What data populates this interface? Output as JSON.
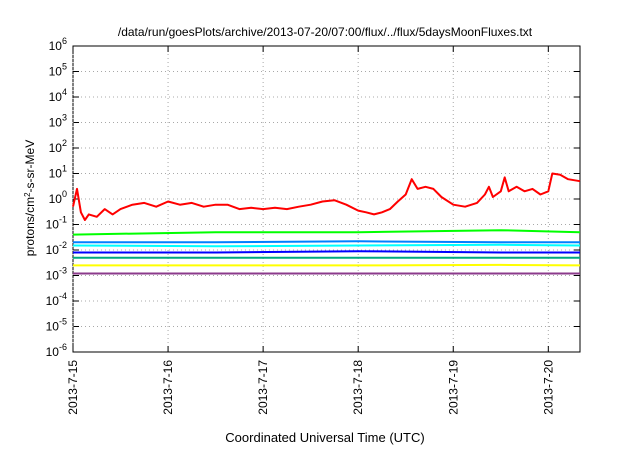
{
  "chart_data": {
    "type": "line",
    "title": "/data/run/goesPlots/archive/2013-07-20/07:00/flux/../flux/5daysMoonFluxes.txt",
    "xlabel": "Coordinated Universal Time (UTC)",
    "ylabel": {
      "prefix": "protons/cm",
      "sup": "2",
      "suffix": "-s-sr-MeV"
    },
    "yscale": "log",
    "ylim": [
      1e-06,
      1000000.0
    ],
    "y_ticks": [
      {
        "base": "10",
        "exp": "6"
      },
      {
        "base": "10",
        "exp": "5"
      },
      {
        "base": "10",
        "exp": "4"
      },
      {
        "base": "10",
        "exp": "3"
      },
      {
        "base": "10",
        "exp": "2"
      },
      {
        "base": "10",
        "exp": "1"
      },
      {
        "base": "10",
        "exp": "0"
      },
      {
        "base": "10",
        "exp": "-1"
      },
      {
        "base": "10",
        "exp": "-2"
      },
      {
        "base": "10",
        "exp": "-3"
      },
      {
        "base": "10",
        "exp": "-4"
      },
      {
        "base": "10",
        "exp": "-5"
      },
      {
        "base": "10",
        "exp": "-6"
      }
    ],
    "xlim": [
      "2013-07-15",
      "2013-07-20 08:00"
    ],
    "x_ticks": [
      "2013-7-15",
      "2013-7-16",
      "2013-7-17",
      "2013-7-18",
      "2013-7-19",
      "2013-7-20"
    ],
    "grid": true,
    "series": [
      {
        "color": "#ff0000",
        "values": [
          [
            "2013-07-15 00:00",
            0.5
          ],
          [
            "2013-07-15 01:00",
            2.5
          ],
          [
            "2013-07-15 02:00",
            0.3
          ],
          [
            "2013-07-15 03:00",
            0.15
          ],
          [
            "2013-07-15 04:00",
            0.25
          ],
          [
            "2013-07-15 06:00",
            0.2
          ],
          [
            "2013-07-15 08:00",
            0.4
          ],
          [
            "2013-07-15 10:00",
            0.25
          ],
          [
            "2013-07-15 12:00",
            0.4
          ],
          [
            "2013-07-15 15:00",
            0.6
          ],
          [
            "2013-07-15 18:00",
            0.7
          ],
          [
            "2013-07-15 21:00",
            0.5
          ],
          [
            "2013-07-16 00:00",
            0.8
          ],
          [
            "2013-07-16 03:00",
            0.6
          ],
          [
            "2013-07-16 06:00",
            0.7
          ],
          [
            "2013-07-16 09:00",
            0.5
          ],
          [
            "2013-07-16 12:00",
            0.6
          ],
          [
            "2013-07-16 15:00",
            0.6
          ],
          [
            "2013-07-16 18:00",
            0.4
          ],
          [
            "2013-07-16 21:00",
            0.45
          ],
          [
            "2013-07-17 00:00",
            0.4
          ],
          [
            "2013-07-17 03:00",
            0.45
          ],
          [
            "2013-07-17 06:00",
            0.4
          ],
          [
            "2013-07-17 09:00",
            0.5
          ],
          [
            "2013-07-17 12:00",
            0.6
          ],
          [
            "2013-07-17 15:00",
            0.8
          ],
          [
            "2013-07-17 18:00",
            0.9
          ],
          [
            "2013-07-17 21:00",
            0.6
          ],
          [
            "2013-07-18 00:00",
            0.35
          ],
          [
            "2013-07-18 02:00",
            0.3
          ],
          [
            "2013-07-18 04:00",
            0.25
          ],
          [
            "2013-07-18 06:00",
            0.3
          ],
          [
            "2013-07-18 08:00",
            0.4
          ],
          [
            "2013-07-18 10:00",
            0.8
          ],
          [
            "2013-07-18 12:00",
            1.5
          ],
          [
            "2013-07-18 13:30",
            6
          ],
          [
            "2013-07-18 15:00",
            2.5
          ],
          [
            "2013-07-18 17:00",
            3
          ],
          [
            "2013-07-18 19:00",
            2.5
          ],
          [
            "2013-07-18 21:00",
            1.2
          ],
          [
            "2013-07-19 00:00",
            0.6
          ],
          [
            "2013-07-19 03:00",
            0.5
          ],
          [
            "2013-07-19 06:00",
            0.7
          ],
          [
            "2013-07-19 08:00",
            1.5
          ],
          [
            "2013-07-19 09:00",
            3
          ],
          [
            "2013-07-19 10:00",
            1.2
          ],
          [
            "2013-07-19 12:00",
            2
          ],
          [
            "2013-07-19 13:00",
            7
          ],
          [
            "2013-07-19 14:00",
            2
          ],
          [
            "2013-07-19 16:00",
            3
          ],
          [
            "2013-07-19 18:00",
            2
          ],
          [
            "2013-07-19 20:00",
            2.5
          ],
          [
            "2013-07-19 22:00",
            1.5
          ],
          [
            "2013-07-20 00:00",
            2
          ],
          [
            "2013-07-20 01:00",
            10
          ],
          [
            "2013-07-20 03:00",
            9
          ],
          [
            "2013-07-20 05:00",
            6
          ],
          [
            "2013-07-20 08:00",
            5
          ]
        ]
      },
      {
        "color": "#00ff00",
        "values": [
          [
            "2013-07-15 00:00",
            0.04
          ],
          [
            "2013-07-16 12:00",
            0.05
          ],
          [
            "2013-07-18 00:00",
            0.05
          ],
          [
            "2013-07-19 12:00",
            0.06
          ],
          [
            "2013-07-20 08:00",
            0.05
          ]
        ]
      },
      {
        "color": "#00ffff",
        "values": [
          [
            "2013-07-15 00:00",
            0.015
          ],
          [
            "2013-07-16 12:00",
            0.014
          ],
          [
            "2013-07-18 00:00",
            0.015
          ],
          [
            "2013-07-19 12:00",
            0.016
          ],
          [
            "2013-07-20 08:00",
            0.015
          ]
        ]
      },
      {
        "color": "#0080ff",
        "values": [
          [
            "2013-07-15 00:00",
            0.02
          ],
          [
            "2013-07-16 12:00",
            0.02
          ],
          [
            "2013-07-18 00:00",
            0.022
          ],
          [
            "2013-07-19 12:00",
            0.02
          ],
          [
            "2013-07-20 08:00",
            0.02
          ]
        ]
      },
      {
        "color": "#0000ff",
        "values": [
          [
            "2013-07-15 00:00",
            0.008
          ],
          [
            "2013-07-16 12:00",
            0.008
          ],
          [
            "2013-07-18 00:00",
            0.009
          ],
          [
            "2013-07-19 12:00",
            0.008
          ],
          [
            "2013-07-20 08:00",
            0.008
          ]
        ]
      },
      {
        "color": "#00aa80",
        "values": [
          [
            "2013-07-15 00:00",
            0.005
          ],
          [
            "2013-07-16 12:00",
            0.005
          ],
          [
            "2013-07-18 00:00",
            0.005
          ],
          [
            "2013-07-19 12:00",
            0.005
          ],
          [
            "2013-07-20 08:00",
            0.005
          ]
        ]
      },
      {
        "color": "#ffff00",
        "values": [
          [
            "2013-07-15 00:00",
            0.0025
          ],
          [
            "2013-07-16 12:00",
            0.0025
          ],
          [
            "2013-07-18 00:00",
            0.0025
          ],
          [
            "2013-07-19 12:00",
            0.0026
          ],
          [
            "2013-07-20 08:00",
            0.0025
          ]
        ]
      },
      {
        "color": "#8b3a8b",
        "values": [
          [
            "2013-07-15 00:00",
            0.0012
          ],
          [
            "2013-07-16 12:00",
            0.0012
          ],
          [
            "2013-07-18 00:00",
            0.0012
          ],
          [
            "2013-07-19 12:00",
            0.0012
          ],
          [
            "2013-07-20 08:00",
            0.0012
          ]
        ]
      }
    ]
  }
}
